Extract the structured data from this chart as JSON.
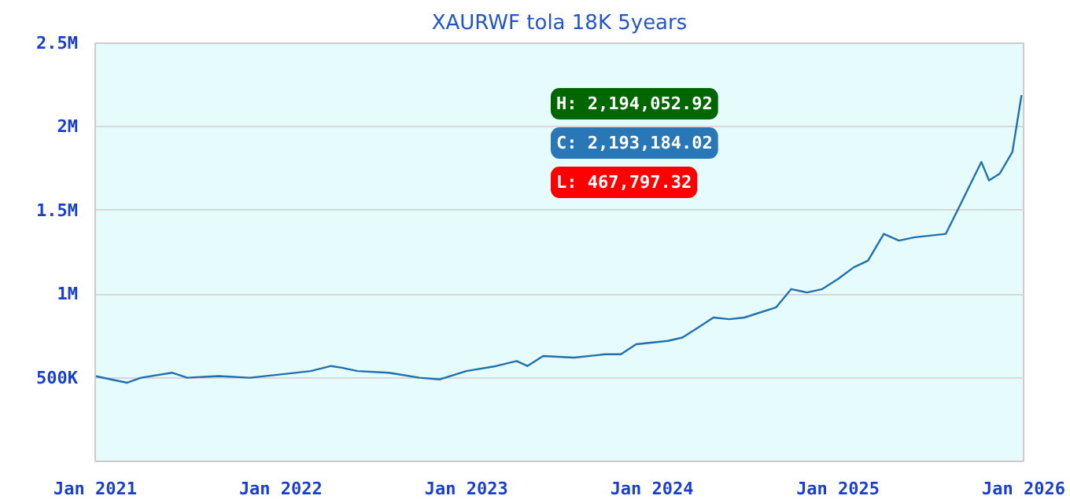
{
  "chart_data": {
    "type": "line",
    "title": "XAURWF tola 18K 5years",
    "x": [
      "2021-01-01",
      "2021-02-01",
      "2021-03-05",
      "2021-04-01",
      "2021-06-01",
      "2021-07-01",
      "2021-09-01",
      "2021-11-01",
      "2022-01-01",
      "2022-03-01",
      "2022-04-10",
      "2022-05-01",
      "2022-06-01",
      "2022-08-01",
      "2022-10-01",
      "2022-11-10",
      "2023-01-01",
      "2023-03-01",
      "2023-04-10",
      "2023-05-01",
      "2023-06-01",
      "2023-08-01",
      "2023-10-01",
      "2023-11-01",
      "2023-12-01",
      "2024-02-01",
      "2024-03-01",
      "2024-04-01",
      "2024-05-01",
      "2024-06-01",
      "2024-07-01",
      "2024-09-01",
      "2024-10-01",
      "2024-11-01",
      "2024-12-01",
      "2025-01-01",
      "2025-02-01",
      "2025-03-01",
      "2025-04-01",
      "2025-05-01",
      "2025-06-01",
      "2025-08-01",
      "2025-09-01",
      "2025-10-10",
      "2025-10-25",
      "2025-11-15",
      "2025-12-10",
      "2025-12-28"
    ],
    "series": [
      {
        "color": "#2070b0",
        "values": [
          510000,
          490000,
          470000,
          500000,
          530000,
          500000,
          510000,
          500000,
          520000,
          540000,
          570000,
          560000,
          540000,
          530000,
          500000,
          490000,
          540000,
          570000,
          600000,
          570000,
          630000,
          620000,
          640000,
          640000,
          700000,
          720000,
          740000,
          800000,
          860000,
          850000,
          860000,
          920000,
          1030000,
          1010000,
          1030000,
          1090000,
          1160000,
          1200000,
          1360000,
          1320000,
          1340000,
          1360000,
          1550000,
          1790000,
          1680000,
          1720000,
          1850000,
          2190000
        ]
      }
    ],
    "xlim": [
      "2021-01-01",
      "2026-01-01"
    ],
    "xticks": [
      {
        "value": "2021-01-01",
        "label": "Jan 2021"
      },
      {
        "value": "2022-01-01",
        "label": "Jan 2022"
      },
      {
        "value": "2023-01-01",
        "label": "Jan 2023"
      },
      {
        "value": "2024-01-01",
        "label": "Jan 2024"
      },
      {
        "value": "2025-01-01",
        "label": "Jan 2025"
      },
      {
        "value": "2026-01-01",
        "label": "Jan 2026"
      }
    ],
    "ylim": [
      0,
      2500000
    ],
    "yticks": [
      {
        "value": 500000,
        "label": "500K"
      },
      {
        "value": 1000000,
        "label": "1M"
      },
      {
        "value": 1500000,
        "label": "1.5M"
      },
      {
        "value": 2000000,
        "label": "2M"
      },
      {
        "value": 2500000,
        "label": "2.5M"
      }
    ],
    "grid": "y",
    "annotations": [
      "H: 2,194,052.92",
      "C: 2,193,184.02",
      "L: 467,797.32"
    ]
  }
}
